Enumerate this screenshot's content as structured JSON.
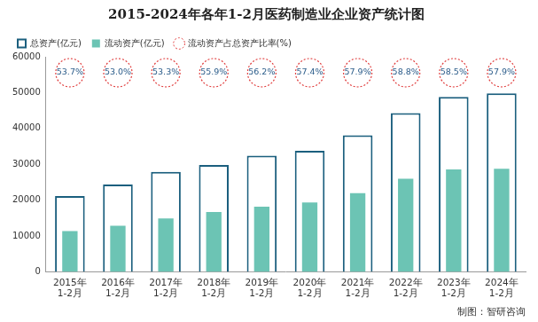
{
  "chart_data": {
    "type": "bar",
    "title": "2015-2024年各年1-2月医药制造业企业资产统计图",
    "source": "制图：智研咨询",
    "categories": [
      "2015年\n1-2月",
      "2016年\n1-2月",
      "2017年\n1-2月",
      "2018年\n1-2月",
      "2019年\n1-2月",
      "2020年\n1-2月",
      "2021年\n1-2月",
      "2022年\n1-2月",
      "2023年\n1-2月",
      "2024年\n1-2月"
    ],
    "series": [
      {
        "name": "总资产(亿元)",
        "color": "#1b5f7e",
        "values": [
          21200,
          24400,
          27900,
          29800,
          32400,
          33800,
          38100,
          44300,
          48800,
          49800
        ]
      },
      {
        "name": "流动资产(亿元)",
        "color": "#6cc4b4",
        "values": [
          11400,
          12900,
          14900,
          16700,
          18200,
          19400,
          22000,
          26000,
          28600,
          28800
        ]
      },
      {
        "name": "流动资产占总资产比率(%)",
        "type": "annotation",
        "color": "#e03c3c",
        "marker": "circle",
        "line_style": "dotted",
        "values": [
          53.7,
          53.0,
          53.3,
          55.9,
          56.2,
          57.4,
          57.9,
          58.8,
          58.5,
          57.9
        ],
        "value_labels": [
          "53.7%",
          "53.0%",
          "53.3%",
          "55.9%",
          "56.2%",
          "57.4%",
          "57.9%",
          "58.8%",
          "58.5%",
          "57.9%"
        ]
      }
    ],
    "ylim": [
      0,
      60000
    ],
    "yticks": [
      0,
      10000,
      20000,
      30000,
      40000,
      50000,
      60000
    ],
    "grid": false,
    "legend": "top-left",
    "data_labels": false
  }
}
